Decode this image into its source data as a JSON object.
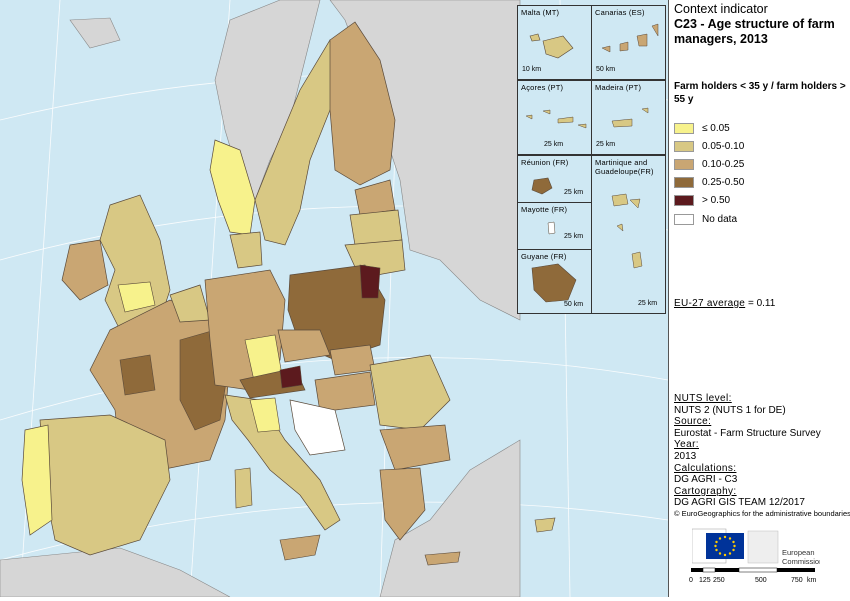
{
  "title": {
    "line1": "Context indicator",
    "line2": "C23 - Age structure of farm managers, 2013"
  },
  "legend": {
    "title": "Farm holders < 35 y / farm holders > 55 y",
    "items": [
      {
        "label": "≤ 0.05",
        "color": "#f7f28c"
      },
      {
        "label": "0.05-0.10",
        "color": "#d8c884"
      },
      {
        "label": "0.10-0.25",
        "color": "#c9a673"
      },
      {
        "label": "0.25-0.50",
        "color": "#8f6a3a"
      },
      {
        "label": "> 0.50",
        "color": "#5c1a1e"
      },
      {
        "label": "No data",
        "color": "#ffffff"
      }
    ]
  },
  "eu_average": {
    "label": "EU-27 average",
    "value": "= 0.11"
  },
  "metadata": [
    {
      "heading": "NUTS level:",
      "value": "NUTS 2 (NUTS 1 for DE)"
    },
    {
      "heading": "Source:",
      "value": "Eurostat - Farm Structure Survey"
    },
    {
      "heading": "Year:",
      "value": "2013"
    },
    {
      "heading": "Calculations:",
      "value": "DG AGRI - C3"
    },
    {
      "heading": "Cartography:",
      "value": "DG AGRI GIS TEAM 12/2017"
    }
  ],
  "copyright": "© EuroGeographics for the administrative boundaries",
  "logo": {
    "line1": "European",
    "line2": "Commission"
  },
  "scale_bar": {
    "ticks": [
      "0",
      "125",
      "250",
      "500",
      "750"
    ],
    "unit": "km"
  },
  "insets": [
    {
      "name": "Malta (MT)",
      "scale": "10 km"
    },
    {
      "name": "Canarias (ES)",
      "scale": "50 km"
    },
    {
      "name": "Açores (PT)",
      "scale": "25 km"
    },
    {
      "name": "Madeira (PT)",
      "scale": "25 km"
    },
    {
      "name": "Réunion (FR)",
      "scale": "25 km"
    },
    {
      "name": "Martinique and Guadeloupe(FR)",
      "scale": "25 km"
    },
    {
      "name": "Mayotte (FR)",
      "scale": "25 km"
    },
    {
      "name": "Guyane (FR)",
      "scale": "50 km"
    }
  ],
  "colors": {
    "sea": "#cfe8f3",
    "non_eu_land": "#d6d6d6",
    "boundary": "#5a4a3a"
  }
}
